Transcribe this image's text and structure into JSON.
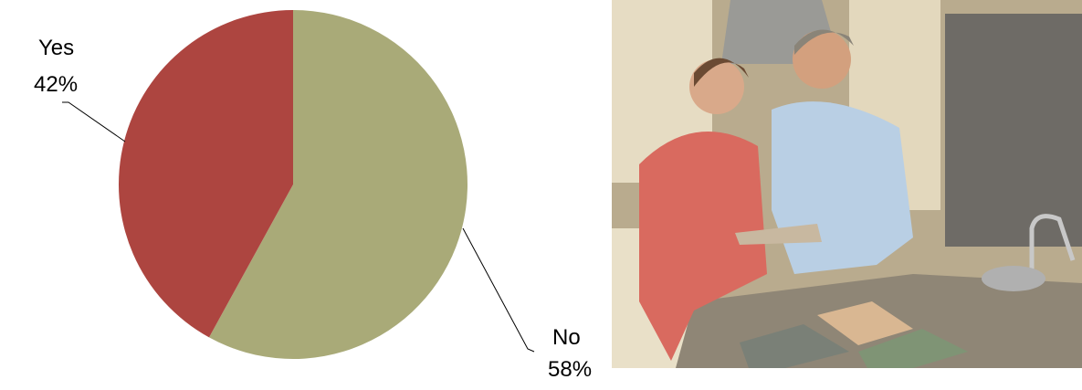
{
  "chart_data": {
    "type": "pie",
    "categories": [
      "No",
      "Yes"
    ],
    "values": [
      58,
      42
    ],
    "value_labels": [
      "58%",
      "42%"
    ],
    "colors": [
      "#a9aa78",
      "#ad4540"
    ]
  }
}
